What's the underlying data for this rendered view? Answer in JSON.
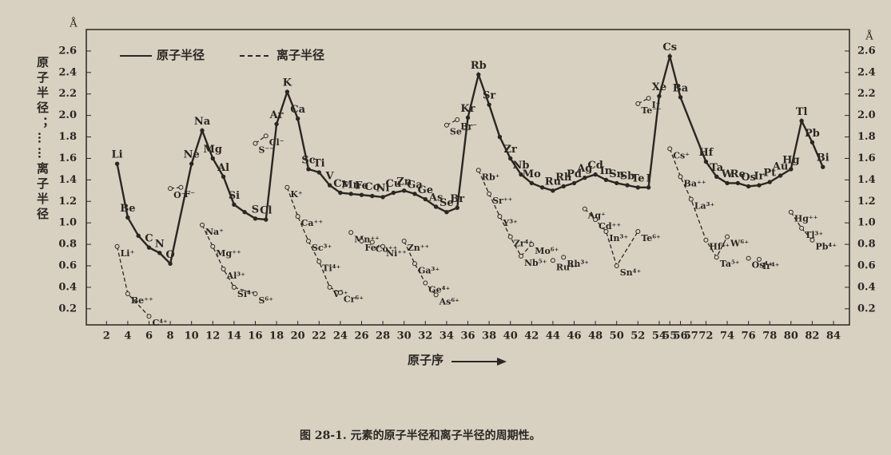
{
  "chart_data": {
    "type": "line",
    "caption": "图 28-1. 元素的原子半径和离子半径的周期性。",
    "ylabel": "原子半径；……离子半径",
    "y_unit": "Å",
    "xlabel": "原子序",
    "xlim": [
      0.1,
      85.5
    ],
    "x_break": [
      57,
      72
    ],
    "ylim": [
      0.05,
      2.8
    ],
    "xticks": [
      2,
      4,
      6,
      8,
      10,
      12,
      14,
      16,
      18,
      20,
      22,
      24,
      26,
      28,
      30,
      32,
      34,
      36,
      38,
      40,
      42,
      44,
      46,
      48,
      50,
      52,
      54,
      55,
      56,
      57,
      72,
      74,
      76,
      78,
      80,
      82,
      84
    ],
    "yticks": [
      0.2,
      0.4,
      0.6,
      0.8,
      {
        "value": 1,
        "label": "1.0"
      },
      1.2,
      1.4,
      1.6,
      1.8,
      {
        "value": 2,
        "label": "2.0"
      },
      2.2,
      2.4,
      2.6
    ],
    "series": [
      {
        "name": "原子半径",
        "style": "solid",
        "color": "#2a2622",
        "x": [
          3,
          4,
          5,
          6,
          7,
          8,
          10,
          11,
          12,
          13,
          14,
          15,
          16,
          17,
          18,
          19,
          20,
          21,
          22,
          23,
          24,
          25,
          26,
          27,
          28,
          29,
          30,
          31,
          32,
          33,
          34,
          35,
          36,
          37,
          38,
          39,
          40,
          41,
          42,
          43,
          44,
          45,
          46,
          47,
          48,
          49,
          50,
          51,
          52,
          53,
          54,
          55,
          56,
          72,
          73,
          74,
          75,
          76,
          77,
          78,
          79,
          80,
          81,
          82,
          83
        ],
        "values": [
          1.55,
          1.05,
          0.88,
          0.77,
          0.72,
          0.62,
          1.55,
          1.86,
          1.6,
          1.43,
          1.17,
          1.1,
          1.04,
          1.03,
          1.92,
          2.22,
          1.97,
          1.5,
          1.47,
          1.35,
          1.28,
          1.27,
          1.26,
          1.25,
          1.24,
          1.28,
          1.3,
          1.27,
          1.22,
          1.15,
          1.1,
          1.14,
          1.98,
          2.38,
          2.1,
          1.8,
          1.6,
          1.45,
          1.37,
          1.33,
          1.3,
          1.34,
          1.37,
          1.42,
          1.45,
          1.4,
          1.37,
          1.35,
          1.33,
          1.33,
          2.18,
          2.55,
          2.17,
          1.57,
          1.43,
          1.37,
          1.37,
          1.34,
          1.35,
          1.38,
          1.44,
          1.5,
          1.95,
          1.75,
          1.52
        ],
        "labels": [
          "Li",
          "Be",
          null,
          "C",
          "N",
          "O",
          "Ne",
          "Na",
          "Mg",
          "Al",
          "Si",
          null,
          "S",
          "Cl",
          "Ar",
          "K",
          "Ca",
          "Sc",
          "Ti",
          "V",
          "Cr",
          "Mn",
          "Fe",
          "Co",
          "Ni",
          "Cu",
          "Zn",
          "Ga",
          "Ge",
          "As",
          "Se",
          "Br",
          "Kr",
          "Rb",
          "Sr",
          null,
          "Zr",
          "Nb",
          "Mo",
          null,
          "Ru",
          "Rh",
          "Pd",
          "Ag",
          "Cd",
          "In",
          "Sn",
          "Sb",
          "Te",
          "I",
          "Xe",
          "Cs",
          "Ba",
          "Hf",
          "Ta",
          "W",
          "Re",
          "Os",
          "Ir",
          "Pt",
          "Au",
          "Hg",
          "Tl",
          "Pb",
          "Bi"
        ]
      },
      {
        "name": "离子半径",
        "style": "dashed",
        "color": "#2a2622",
        "x": [
          3,
          4,
          6,
          null,
          8,
          9,
          null,
          11,
          12,
          13,
          14,
          16,
          null,
          16,
          17,
          null,
          19,
          20,
          21,
          22,
          23,
          24,
          null,
          25,
          null,
          26,
          null,
          27,
          null,
          28,
          null,
          30,
          31,
          32,
          33,
          null,
          34,
          35,
          null,
          37,
          38,
          39,
          40,
          41,
          42,
          null,
          44,
          null,
          45,
          null,
          47,
          48,
          49,
          50,
          52,
          null,
          52,
          53,
          null,
          55,
          56,
          57,
          72,
          73,
          74,
          null,
          76,
          null,
          77,
          null,
          80,
          81,
          82
        ],
        "values": [
          0.78,
          0.34,
          0.13,
          null,
          1.32,
          1.33,
          null,
          0.98,
          0.78,
          0.57,
          0.4,
          0.34,
          null,
          1.74,
          1.81,
          null,
          1.33,
          1.06,
          0.83,
          0.64,
          0.4,
          0.35,
          null,
          0.91,
          null,
          0.83,
          null,
          0.82,
          null,
          0.78,
          null,
          0.83,
          0.62,
          0.44,
          0.33,
          null,
          1.91,
          1.96,
          null,
          1.49,
          1.27,
          1.06,
          0.87,
          0.69,
          0.8,
          null,
          0.65,
          null,
          0.68,
          null,
          1.13,
          1.03,
          0.92,
          0.6,
          0.92,
          null,
          2.11,
          2.16,
          null,
          1.69,
          1.43,
          1.22,
          0.84,
          0.68,
          0.87,
          null,
          0.67,
          null,
          0.66,
          null,
          1.1,
          0.95,
          0.84
        ],
        "labels": [
          "Li⁺",
          "Be⁺⁺",
          "C⁴⁺",
          null,
          "O⁻⁻",
          "F⁻",
          null,
          "Na⁺",
          "Mg⁺⁺",
          "Al³⁺",
          "Si⁴⁺",
          "S⁶⁺",
          null,
          "S⁻⁻",
          "Cl⁻",
          null,
          "K⁺",
          "Ca⁺⁺",
          "Sc³⁺",
          "Ti⁴⁺",
          "V⁵⁺",
          "Cr⁶⁺",
          null,
          "Mn⁺⁺",
          null,
          "Fe⁺⁺",
          null,
          "Co⁺⁺",
          null,
          "Ni⁺⁺",
          null,
          "Zn⁺⁺",
          "Ga³⁺",
          "Ge⁴⁺",
          "As⁶⁺",
          null,
          "Se⁻⁻",
          "Br⁻",
          null,
          "Rb⁺",
          "Sr⁺⁺",
          "Y³⁺",
          "Zr⁴⁺",
          "Nb⁵⁺",
          "Mo⁶⁺",
          null,
          "Ru⁴⁺",
          null,
          "Rh³⁺",
          null,
          "Ag⁺",
          "Cd⁺⁺",
          "In³⁺",
          "Sn⁴⁺",
          "Te⁶⁺",
          null,
          "Te⁻⁻",
          "I⁻",
          null,
          "Cs⁺",
          "Ba⁺⁺",
          "La³⁺",
          "Hf⁴⁺",
          "Ta⁵⁺",
          "W⁶⁺",
          null,
          "Os⁴⁺",
          null,
          "Ir⁴⁺",
          null,
          "Hg⁺⁺",
          "Tl³⁺",
          "Pb⁴⁺"
        ]
      }
    ]
  }
}
